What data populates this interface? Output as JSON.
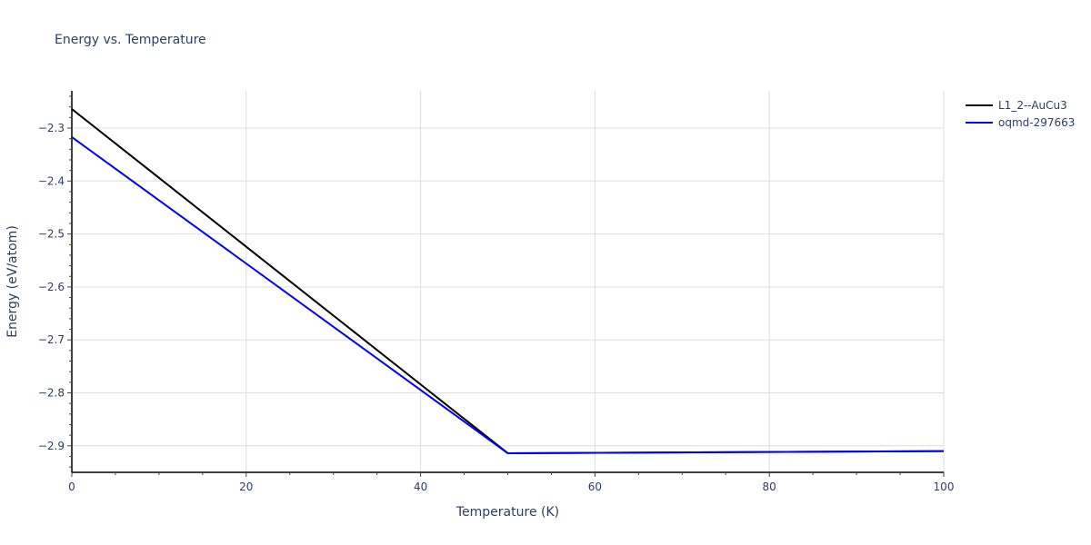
{
  "chart_data": {
    "type": "line",
    "title": "Energy vs. Temperature",
    "xlabel": "Temperature (K)",
    "ylabel": "Energy (eV/atom)",
    "xlim": [
      0,
      100
    ],
    "ylim": [
      -2.95,
      -2.23
    ],
    "xticks": [
      0,
      20,
      40,
      60,
      80,
      100
    ],
    "xtick_labels": [
      "0",
      "20",
      "40",
      "60",
      "80",
      "100"
    ],
    "yticks": [
      -2.3,
      -2.4,
      -2.5,
      -2.6,
      -2.7,
      -2.8,
      -2.9
    ],
    "ytick_labels": [
      "−2.3",
      "−2.4",
      "−2.5",
      "−2.6",
      "−2.7",
      "−2.8",
      "−2.9"
    ],
    "grid": true,
    "legend_position": "top-right-outside",
    "series": [
      {
        "name": "L1_2--AuCu3",
        "color": "#000000",
        "x": [
          0,
          50,
          100
        ],
        "y": [
          -2.264,
          -2.914,
          -2.91
        ]
      },
      {
        "name": "oqmd-297663",
        "color": "#0000ff",
        "x": [
          0,
          50,
          100
        ],
        "y": [
          -2.317,
          -2.914,
          -2.91
        ]
      }
    ]
  }
}
